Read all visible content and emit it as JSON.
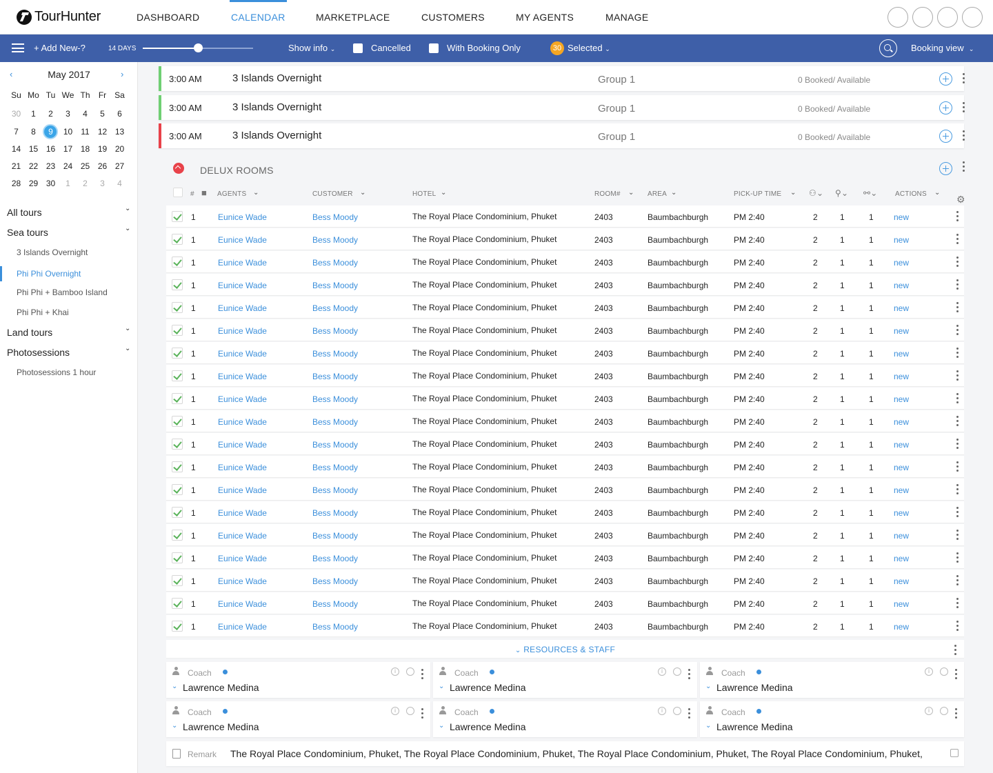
{
  "brand": {
    "logo_text": "TourHunter",
    "logo_icon": "tourhunter-logo-icon"
  },
  "nav": {
    "items": [
      "DASHBOARD",
      "CALENDAR",
      "MARKETPLACE",
      "CUSTOMERS",
      "MY AGENTS",
      "MANAGE"
    ],
    "active": "CALENDAR",
    "accent_color": "#3b8fdb"
  },
  "toolbar": {
    "menu_icon": "hamburger-icon",
    "add_new": "+ Add New-?",
    "days_label": "14 DAYS",
    "days_slider_fraction": 0.5,
    "show_info": "Show info",
    "cancelled": "Cancelled",
    "booking_only": "With Booking Only",
    "selected_count": "30",
    "selected_label": "Selected",
    "view_label": "Booking view",
    "bg_color": "#3e5fa8"
  },
  "calendar": {
    "month": "May 2017",
    "weekdays": [
      "Su",
      "Mo",
      "Tu",
      "We",
      "Th",
      "Fr",
      "Sa"
    ],
    "weeks": [
      [
        "30",
        "1",
        "2",
        "3",
        "4",
        "5",
        "6"
      ],
      [
        "7",
        "8",
        "9",
        "10",
        "11",
        "12",
        "13"
      ],
      [
        "14",
        "15",
        "16",
        "17",
        "18",
        "19",
        "20"
      ],
      [
        "21",
        "22",
        "23",
        "24",
        "25",
        "26",
        "27"
      ],
      [
        "28",
        "29",
        "30",
        "1",
        "2",
        "3",
        "4"
      ]
    ],
    "today": "9"
  },
  "sidebar": {
    "groups": [
      {
        "label": "All tours",
        "items": []
      },
      {
        "label": "Sea tours",
        "items": [
          "3 Islands Overnight",
          "Phi Phi Overnight",
          "Phi Phi + Bamboo Island",
          "Phi Phi + Khai"
        ]
      },
      {
        "label": "Land tours",
        "items": []
      },
      {
        "label": "Photosessions",
        "items": [
          "Photosessions 1 hour"
        ]
      }
    ],
    "active_item": "Phi Phi Overnight"
  },
  "tours": [
    {
      "time": "3:00 AM",
      "name": "3 Islands Overnight",
      "group": "Group 1",
      "status": "0 Booked/ Available",
      "accent": "#6fcf73"
    },
    {
      "time": "3:00 AM",
      "name": "3 Islands Overnight",
      "group": "Group 1",
      "status": "0 Booked/ Available",
      "accent": "#6fcf73"
    },
    {
      "time": "3:00 AM",
      "name": "3 Islands Overnight",
      "group": "Group 1",
      "status": "0 Booked/ Available",
      "accent": "#e8424a"
    }
  ],
  "section": {
    "title": "DELUX ROOMS"
  },
  "table": {
    "headers": {
      "num": "#",
      "agents": "AGENTS",
      "customer": "CUSTOMER",
      "hotel": "HOTEL",
      "room": "ROOM#",
      "area": "AREA",
      "pickup": "PICK-UP TIME",
      "actions": "ACTIONS"
    },
    "rows": [
      {
        "num": "1",
        "agent": "Eunice Wade",
        "customer": "Bess Moody",
        "hotel": "The Royal Place Condominium, Phuket",
        "room": "2403",
        "area": "Baumbachburgh",
        "pickup": "PM 2:40",
        "adults": "2",
        "children": "1",
        "infants": "1",
        "action": "new"
      },
      {
        "num": "1",
        "agent": "Eunice Wade",
        "customer": "Bess Moody",
        "hotel": "The Royal Place Condominium, Phuket",
        "room": "2403",
        "area": "Baumbachburgh",
        "pickup": "PM 2:40",
        "adults": "2",
        "children": "1",
        "infants": "1",
        "action": "new"
      },
      {
        "num": "1",
        "agent": "Eunice Wade",
        "customer": "Bess Moody",
        "hotel": "The Royal Place Condominium, Phuket",
        "room": "2403",
        "area": "Baumbachburgh",
        "pickup": "PM 2:40",
        "adults": "2",
        "children": "1",
        "infants": "1",
        "action": "new"
      },
      {
        "num": "1",
        "agent": "Eunice Wade",
        "customer": "Bess Moody",
        "hotel": "The Royal Place Condominium, Phuket",
        "room": "2403",
        "area": "Baumbachburgh",
        "pickup": "PM 2:40",
        "adults": "2",
        "children": "1",
        "infants": "1",
        "action": "new"
      },
      {
        "num": "1",
        "agent": "Eunice Wade",
        "customer": "Bess Moody",
        "hotel": "The Royal Place Condominium, Phuket",
        "room": "2403",
        "area": "Baumbachburgh",
        "pickup": "PM 2:40",
        "adults": "2",
        "children": "1",
        "infants": "1",
        "action": "new"
      },
      {
        "num": "1",
        "agent": "Eunice Wade",
        "customer": "Bess Moody",
        "hotel": "The Royal Place Condominium, Phuket",
        "room": "2403",
        "area": "Baumbachburgh",
        "pickup": "PM 2:40",
        "adults": "2",
        "children": "1",
        "infants": "1",
        "action": "new"
      },
      {
        "num": "1",
        "agent": "Eunice Wade",
        "customer": "Bess Moody",
        "hotel": "The Royal Place Condominium, Phuket",
        "room": "2403",
        "area": "Baumbachburgh",
        "pickup": "PM 2:40",
        "adults": "2",
        "children": "1",
        "infants": "1",
        "action": "new"
      },
      {
        "num": "1",
        "agent": "Eunice Wade",
        "customer": "Bess Moody",
        "hotel": "The Royal Place Condominium, Phuket",
        "room": "2403",
        "area": "Baumbachburgh",
        "pickup": "PM 2:40",
        "adults": "2",
        "children": "1",
        "infants": "1",
        "action": "new"
      },
      {
        "num": "1",
        "agent": "Eunice Wade",
        "customer": "Bess Moody",
        "hotel": "The Royal Place Condominium, Phuket",
        "room": "2403",
        "area": "Baumbachburgh",
        "pickup": "PM 2:40",
        "adults": "2",
        "children": "1",
        "infants": "1",
        "action": "new"
      },
      {
        "num": "1",
        "agent": "Eunice Wade",
        "customer": "Bess Moody",
        "hotel": "The Royal Place Condominium, Phuket",
        "room": "2403",
        "area": "Baumbachburgh",
        "pickup": "PM 2:40",
        "adults": "2",
        "children": "1",
        "infants": "1",
        "action": "new"
      },
      {
        "num": "1",
        "agent": "Eunice Wade",
        "customer": "Bess Moody",
        "hotel": "The Royal Place Condominium, Phuket",
        "room": "2403",
        "area": "Baumbachburgh",
        "pickup": "PM 2:40",
        "adults": "2",
        "children": "1",
        "infants": "1",
        "action": "new"
      },
      {
        "num": "1",
        "agent": "Eunice Wade",
        "customer": "Bess Moody",
        "hotel": "The Royal Place Condominium, Phuket",
        "room": "2403",
        "area": "Baumbachburgh",
        "pickup": "PM 2:40",
        "adults": "2",
        "children": "1",
        "infants": "1",
        "action": "new"
      },
      {
        "num": "1",
        "agent": "Eunice Wade",
        "customer": "Bess Moody",
        "hotel": "The Royal Place Condominium, Phuket",
        "room": "2403",
        "area": "Baumbachburgh",
        "pickup": "PM 2:40",
        "adults": "2",
        "children": "1",
        "infants": "1",
        "action": "new"
      },
      {
        "num": "1",
        "agent": "Eunice Wade",
        "customer": "Bess Moody",
        "hotel": "The Royal Place Condominium, Phuket",
        "room": "2403",
        "area": "Baumbachburgh",
        "pickup": "PM 2:40",
        "adults": "2",
        "children": "1",
        "infants": "1",
        "action": "new"
      },
      {
        "num": "1",
        "agent": "Eunice Wade",
        "customer": "Bess Moody",
        "hotel": "The Royal Place Condominium, Phuket",
        "room": "2403",
        "area": "Baumbachburgh",
        "pickup": "PM 2:40",
        "adults": "2",
        "children": "1",
        "infants": "1",
        "action": "new"
      },
      {
        "num": "1",
        "agent": "Eunice Wade",
        "customer": "Bess Moody",
        "hotel": "The Royal Place Condominium, Phuket",
        "room": "2403",
        "area": "Baumbachburgh",
        "pickup": "PM 2:40",
        "adults": "2",
        "children": "1",
        "infants": "1",
        "action": "new"
      },
      {
        "num": "1",
        "agent": "Eunice Wade",
        "customer": "Bess Moody",
        "hotel": "The Royal Place Condominium, Phuket",
        "room": "2403",
        "area": "Baumbachburgh",
        "pickup": "PM 2:40",
        "adults": "2",
        "children": "1",
        "infants": "1",
        "action": "new"
      },
      {
        "num": "1",
        "agent": "Eunice Wade",
        "customer": "Bess Moody",
        "hotel": "The Royal Place Condominium, Phuket",
        "room": "2403",
        "area": "Baumbachburgh",
        "pickup": "PM 2:40",
        "adults": "2",
        "children": "1",
        "infants": "1",
        "action": "new"
      },
      {
        "num": "1",
        "agent": "Eunice Wade",
        "customer": "Bess Moody",
        "hotel": "The Royal Place Condominium, Phuket",
        "room": "2403",
        "area": "Baumbachburgh",
        "pickup": "PM 2:40",
        "adults": "2",
        "children": "1",
        "infants": "1",
        "action": "new"
      }
    ]
  },
  "resources": {
    "label": "RESOURCES & STAFF",
    "staff": [
      {
        "role": "Coach",
        "name": "Lawrence Medina"
      },
      {
        "role": "Coach",
        "name": "Lawrence Medina"
      },
      {
        "role": "Coach",
        "name": "Lawrence Medina"
      },
      {
        "role": "Coach",
        "name": "Lawrence Medina"
      },
      {
        "role": "Coach",
        "name": "Lawrence Medina"
      },
      {
        "role": "Coach",
        "name": "Lawrence Medina"
      }
    ]
  },
  "remark": {
    "label": "Remark",
    "text": "The Royal Place Condominium, Phuket, The Royal Place Condominium, Phuket, The Royal Place Condominium, Phuket, The Royal Place Condominium, Phuket,"
  }
}
